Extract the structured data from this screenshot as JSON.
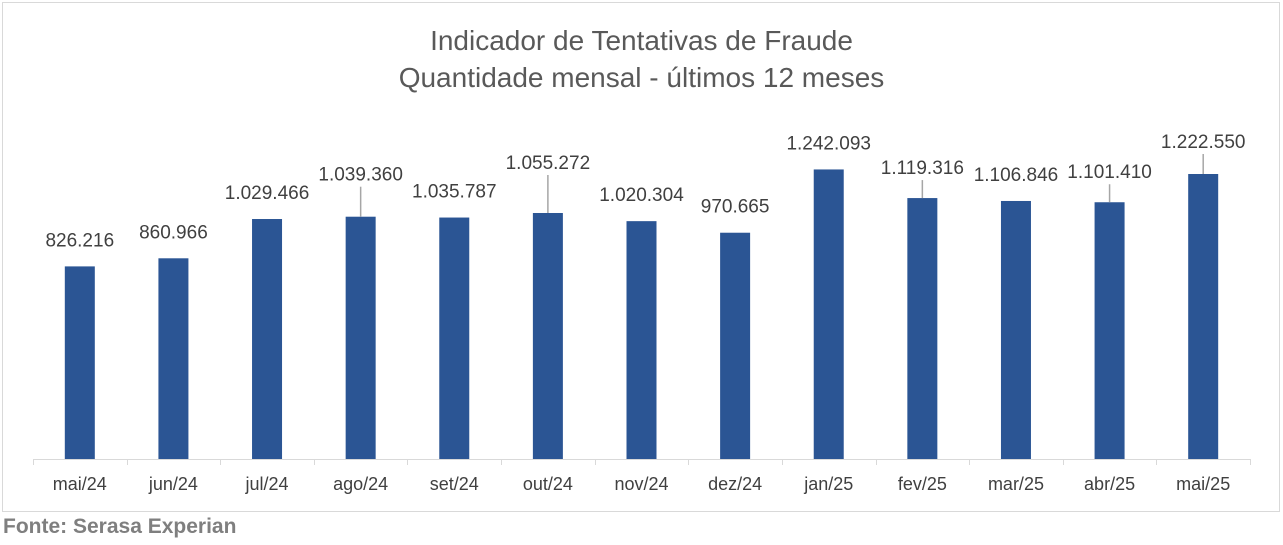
{
  "chart_data": {
    "type": "bar",
    "title": "Indicador de Tentativas de Fraude",
    "subtitle": "Quantidade mensal - últimos 12 meses",
    "categories": [
      "mai/24",
      "jun/24",
      "jul/24",
      "ago/24",
      "set/24",
      "out/24",
      "nov/24",
      "dez/24",
      "jan/25",
      "fev/25",
      "mar/25",
      "abr/25",
      "mai/25"
    ],
    "values": [
      826216,
      860966,
      1029466,
      1039360,
      1035787,
      1055272,
      1020304,
      970665,
      1242093,
      1119316,
      1106846,
      1101410,
      1222550
    ],
    "data_labels": [
      "826.216",
      "860.966",
      "1.029.466",
      "1.039.360",
      "1.035.787",
      "1.055.272",
      "1.020.304",
      "970.665",
      "1.242.093",
      "1.119.316",
      "1.106.846",
      "1.101.410",
      "1.222.550"
    ],
    "xlabel": "",
    "ylabel": "",
    "ylim": [
      0,
      1540000
    ],
    "grid": false,
    "legend": "none",
    "bar_color": "#2B5594"
  },
  "source": "Fonte: Serasa Experian"
}
